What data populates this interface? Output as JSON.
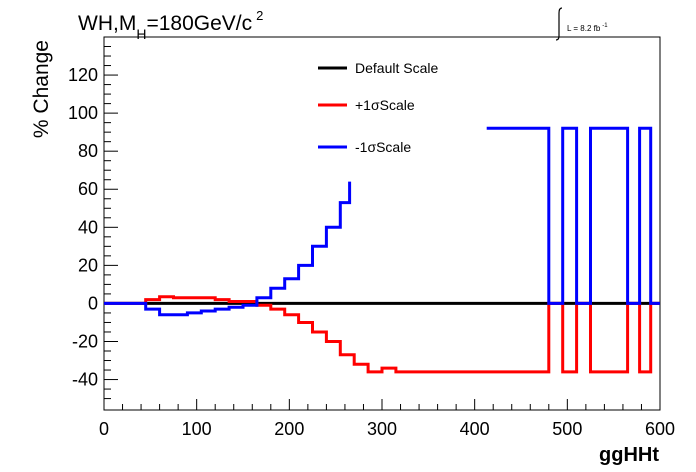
{
  "chart_data": {
    "type": "line",
    "title": "WH,M",
    "title_subscript": "H",
    "title_rest": "=180GeV/c",
    "title_superscript": "2",
    "lumi_label": "L = 8.2 fb",
    "lumi_superscript": "-1",
    "xlabel": "ggHHt",
    "ylabel": "% Change",
    "xlim": [
      0,
      600
    ],
    "ylim": [
      -56,
      140
    ],
    "x_ticks": [
      0,
      100,
      200,
      300,
      400,
      500,
      600
    ],
    "y_ticks": [
      -40,
      -20,
      0,
      20,
      40,
      60,
      80,
      100,
      120
    ],
    "legend_position": "top-center",
    "grid": false,
    "series": [
      {
        "name": "Default Scale",
        "color": "#000000",
        "x": [
          0,
          600
        ],
        "y": [
          0,
          0
        ]
      },
      {
        "name": "+1σScale",
        "color": "#ff0000",
        "x": [
          0,
          45,
          45,
          60,
          60,
          75,
          75,
          120,
          120,
          135,
          135,
          165,
          165,
          180,
          180,
          195,
          195,
          210,
          210,
          225,
          225,
          240,
          240,
          255,
          255,
          270,
          270,
          285,
          285,
          300,
          300,
          315,
          315,
          480,
          480,
          495,
          495,
          510,
          510,
          525,
          525,
          565,
          565,
          578,
          578,
          590,
          590,
          600
        ],
        "y": [
          0,
          0,
          2,
          2,
          3.5,
          3.5,
          3,
          3,
          2,
          2,
          1,
          1,
          -1,
          -1,
          -3,
          -3,
          -6,
          -6,
          -10,
          -10,
          -15,
          -15,
          -20,
          -20,
          -27,
          -27,
          -32,
          -32,
          -36,
          -36,
          -34,
          -34,
          -36,
          -36,
          0,
          0,
          -36,
          -36,
          0,
          0,
          -36,
          -36,
          0,
          0,
          -36,
          -36,
          0,
          0
        ]
      },
      {
        "name": "-1σScale",
        "color": "#0000ff",
        "x": [
          0,
          45,
          45,
          60,
          60,
          90,
          90,
          105,
          105,
          120,
          120,
          135,
          135,
          150,
          150,
          165,
          165,
          180,
          180,
          195,
          195,
          210,
          210,
          225,
          225,
          240,
          240,
          255,
          255,
          265,
          265,
          null,
          413,
          480,
          480,
          495,
          495,
          510,
          510,
          525,
          525,
          565,
          565,
          578,
          578,
          590,
          590,
          600
        ],
        "y": [
          0,
          0,
          -3,
          -3,
          -6,
          -6,
          -5,
          -5,
          -4,
          -4,
          -3,
          -3,
          -2,
          -2,
          -1,
          -1,
          3,
          3,
          8,
          8,
          13,
          13,
          20,
          20,
          30,
          30,
          40,
          40,
          53,
          53,
          64,
          null,
          92,
          92,
          0,
          0,
          92,
          92,
          0,
          0,
          92,
          92,
          0,
          0,
          92,
          92,
          0,
          0
        ]
      }
    ]
  }
}
